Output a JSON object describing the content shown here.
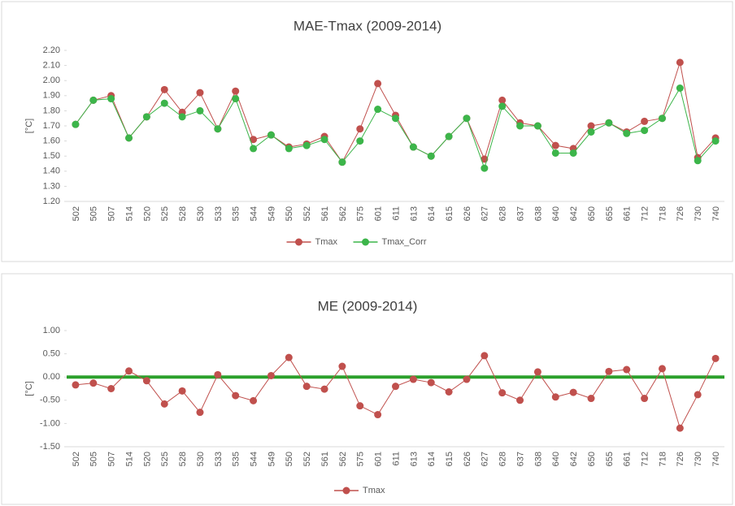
{
  "chart_data": [
    {
      "type": "line",
      "title": "MAE-Tmax (2009-2014)",
      "y_label": "[°C]",
      "categories": [
        "502",
        "505",
        "507",
        "514",
        "520",
        "525",
        "528",
        "530",
        "533",
        "535",
        "544",
        "549",
        "550",
        "552",
        "561",
        "562",
        "575",
        "601",
        "611",
        "613",
        "614",
        "615",
        "626",
        "627",
        "628",
        "637",
        "638",
        "640",
        "642",
        "650",
        "655",
        "661",
        "712",
        "718",
        "726",
        "730",
        "740"
      ],
      "series": [
        {
          "name": "Tmax",
          "color": "#c0504d",
          "values": [
            1.71,
            1.87,
            1.9,
            1.62,
            1.76,
            1.94,
            1.79,
            1.92,
            1.68,
            1.93,
            1.61,
            1.64,
            1.56,
            1.58,
            1.63,
            1.46,
            1.68,
            1.98,
            1.77,
            1.56,
            1.5,
            1.63,
            1.75,
            1.48,
            1.87,
            1.72,
            1.7,
            1.57,
            1.55,
            1.7,
            1.72,
            1.66,
            1.73,
            1.75,
            2.12,
            1.49,
            1.62
          ]
        },
        {
          "name": "Tmax_Corr",
          "color": "#3cb54a",
          "values": [
            1.71,
            1.87,
            1.88,
            1.62,
            1.76,
            1.85,
            1.76,
            1.8,
            1.68,
            1.88,
            1.55,
            1.64,
            1.55,
            1.57,
            1.61,
            1.46,
            1.6,
            1.81,
            1.75,
            1.56,
            1.5,
            1.63,
            1.75,
            1.42,
            1.83,
            1.7,
            1.7,
            1.52,
            1.52,
            1.66,
            1.72,
            1.65,
            1.67,
            1.75,
            1.95,
            1.47,
            1.6
          ]
        }
      ],
      "ylim": [
        1.2,
        2.2
      ],
      "yticks": [
        {
          "value": 1.2,
          "label": "1.20"
        },
        {
          "value": 1.3,
          "label": "1.30"
        },
        {
          "value": 1.4,
          "label": "1.40"
        },
        {
          "value": 1.5,
          "label": "1.50"
        },
        {
          "value": 1.6,
          "label": "1.60"
        },
        {
          "value": 1.7,
          "label": "1.70"
        },
        {
          "value": 1.8,
          "label": "1.80"
        },
        {
          "value": 1.9,
          "label": "1.90"
        },
        {
          "value": 2.0,
          "label": "2.00"
        },
        {
          "value": 2.1,
          "label": "2.10"
        },
        {
          "value": 2.2,
          "label": "2.20"
        }
      ],
      "grid": false,
      "legend": "bottom"
    },
    {
      "type": "line",
      "title": "ME (2009-2014)",
      "y_label": "[°C]",
      "categories": [
        "502",
        "505",
        "507",
        "514",
        "520",
        "525",
        "528",
        "530",
        "533",
        "535",
        "544",
        "549",
        "550",
        "552",
        "561",
        "562",
        "575",
        "601",
        "611",
        "613",
        "614",
        "615",
        "626",
        "627",
        "628",
        "637",
        "638",
        "640",
        "642",
        "650",
        "655",
        "661",
        "712",
        "718",
        "726",
        "730",
        "740"
      ],
      "series": [
        {
          "name": "Tmax",
          "color": "#c0504d",
          "values": [
            -0.17,
            -0.13,
            -0.25,
            0.13,
            -0.08,
            -0.58,
            -0.3,
            -0.76,
            0.05,
            -0.4,
            -0.51,
            0.03,
            0.42,
            -0.2,
            -0.26,
            0.23,
            -0.62,
            -0.81,
            -0.2,
            -0.05,
            -0.12,
            -0.32,
            -0.05,
            0.46,
            -0.34,
            -0.5,
            0.11,
            -0.43,
            -0.33,
            -0.46,
            0.12,
            0.16,
            -0.46,
            0.18,
            -1.1,
            -0.38,
            0.4
          ]
        }
      ],
      "ylim": [
        -1.5,
        1.0
      ],
      "yticks": [
        {
          "value": -1.5,
          "label": "-1.50"
        },
        {
          "value": -1.0,
          "label": "-1.00"
        },
        {
          "value": -0.5,
          "label": "-0.50"
        },
        {
          "value": 0,
          "label": "0.00"
        },
        {
          "value": 0.5,
          "label": "0.50"
        },
        {
          "value": 1.0,
          "label": "1.00"
        }
      ],
      "reference_line": {
        "value": 0,
        "color": "#2ca02c"
      },
      "grid": false,
      "legend": "bottom"
    }
  ]
}
